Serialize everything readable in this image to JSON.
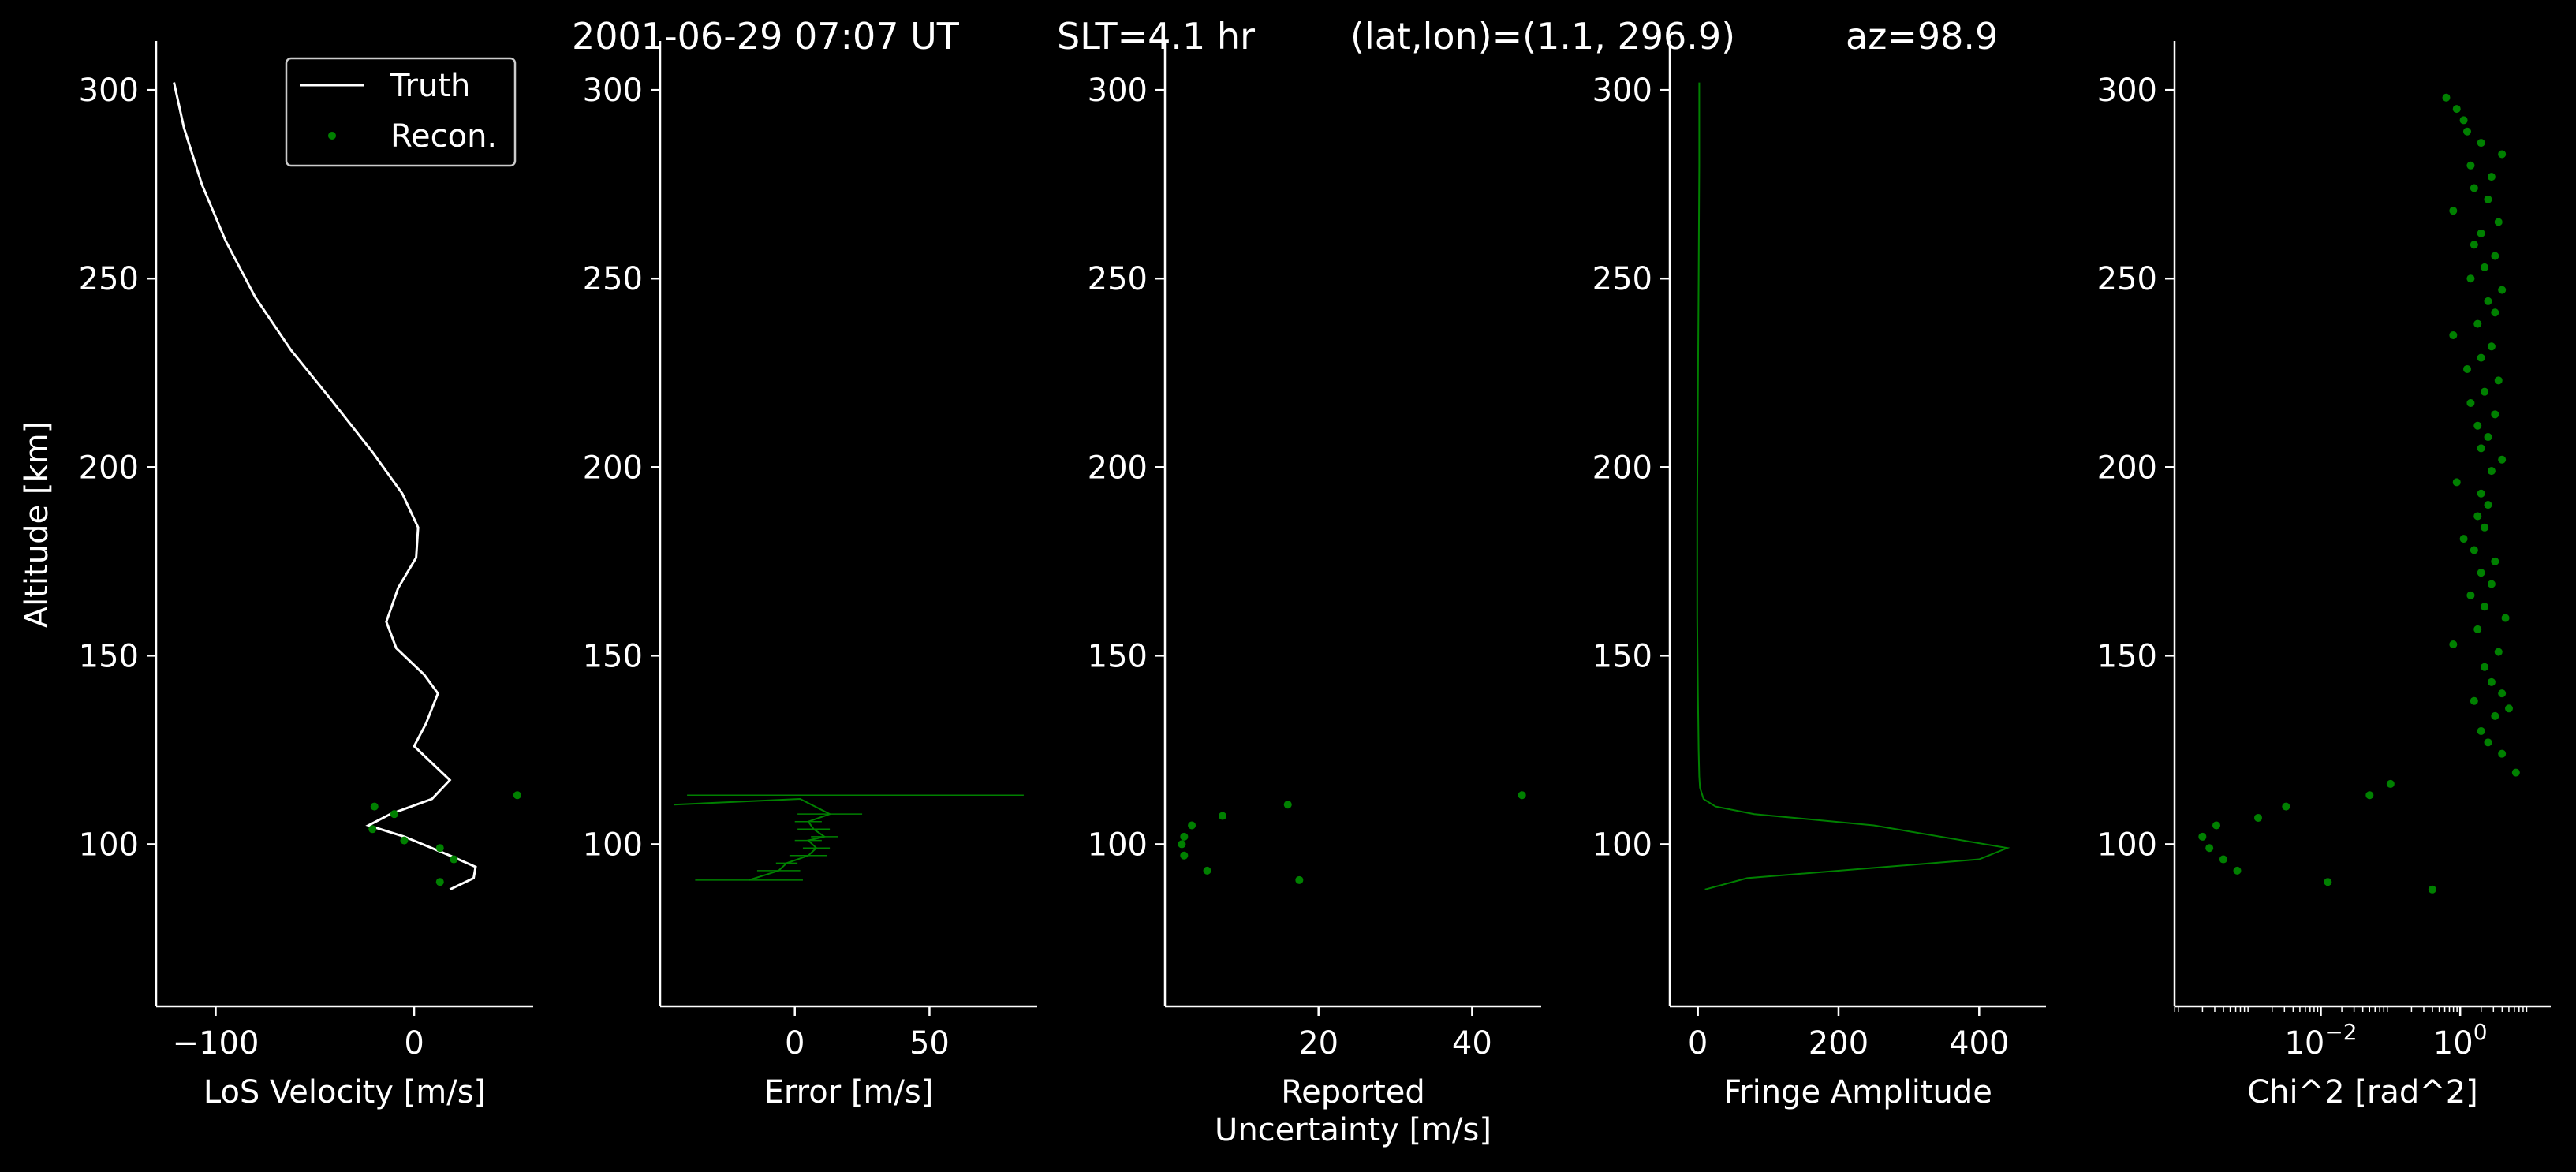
{
  "figure": {
    "title_parts": [
      "2001-06-29 07:07 UT",
      "SLT=4.1 hr",
      "(lat,lon)=(1.1, 296.9)",
      "az=98.9"
    ],
    "background": "#000000",
    "colors": {
      "truth": "#ffffff",
      "recon": "#008000",
      "axis": "#ffffff"
    }
  },
  "chart_data": [
    {
      "type": "line",
      "xlabel": "LoS Velocity [m/s]",
      "ylabel": "Altitude [km]",
      "xlim": [
        -130,
        60
      ],
      "ylim": [
        57,
        313
      ],
      "x_ticks": [
        -100,
        0
      ],
      "x_tick_labels": [
        "−100",
        "0"
      ],
      "y_ticks": [
        100,
        150,
        200,
        250,
        300
      ],
      "legend": {
        "position": "top-right",
        "entries": [
          "Truth",
          "Recon."
        ]
      },
      "series": [
        {
          "name": "Truth",
          "style": "line",
          "x": [
            -121,
            -116,
            -107,
            -95,
            -80,
            -62,
            -42,
            -21,
            -6,
            2,
            1,
            -8,
            -14,
            -9,
            5,
            12,
            6,
            0,
            10,
            18,
            9,
            -12,
            -23,
            -5,
            18,
            31,
            30,
            18
          ],
          "y": [
            302,
            290,
            275,
            260,
            245,
            231,
            218,
            204,
            193,
            184,
            176,
            168,
            159,
            152,
            145,
            140,
            132,
            126,
            121,
            117,
            112,
            108,
            105,
            102,
            97,
            94,
            91,
            88
          ]
        },
        {
          "name": "Recon.",
          "style": "points",
          "x": [
            52,
            -20,
            -10,
            -5,
            13,
            20,
            -21,
            13
          ],
          "y": [
            113,
            110,
            108,
            101,
            99,
            96,
            104,
            90
          ]
        }
      ]
    },
    {
      "type": "line",
      "xlabel": "Error [m/s]",
      "ylim": [
        57,
        313
      ],
      "xlim": [
        -50,
        90
      ],
      "x_ticks": [
        0,
        50
      ],
      "y_ticks": [
        100,
        150,
        200,
        250,
        300
      ],
      "series": [
        {
          "name": "",
          "style": "errorline",
          "x": [
            -45,
            2,
            13,
            5,
            7,
            11,
            5,
            8,
            5,
            -3,
            -6,
            -17
          ],
          "y": [
            110.5,
            112,
            108,
            106,
            104,
            102,
            101,
            99,
            97,
            95,
            93,
            90.5
          ],
          "xerr": [
            0,
            0,
            12,
            5,
            6,
            5,
            5,
            5,
            7,
            4,
            8,
            20
          ],
          "hairline": {
            "x": [
              -40,
              35,
              85
            ],
            "y": [
              113,
              113,
              113
            ]
          }
        }
      ]
    },
    {
      "type": "scatter",
      "xlabel": "Reported\nUncertainty [m/s]",
      "ylim": [
        57,
        313
      ],
      "xlim": [
        0,
        49
      ],
      "x_ticks": [
        20,
        40
      ],
      "y_ticks": [
        100,
        150,
        200,
        250,
        300
      ],
      "series": [
        {
          "name": "",
          "x": [
            46.5,
            16,
            7.5,
            3.5,
            2.5,
            2.2,
            2.5,
            5.5,
            17.5
          ],
          "y": [
            113,
            110.5,
            107.5,
            105,
            102,
            100,
            97,
            93,
            90.5
          ]
        }
      ]
    },
    {
      "type": "line",
      "xlabel": "Fringe Amplitude",
      "ylim": [
        57,
        313
      ],
      "xlim": [
        -40,
        495
      ],
      "x_ticks": [
        0,
        200,
        400
      ],
      "y_ticks": [
        100,
        150,
        200,
        250,
        300
      ],
      "series": [
        {
          "name": "",
          "x": [
            2,
            2,
            1,
            0,
            -1,
            -1,
            0,
            1,
            2,
            3,
            8,
            25,
            80,
            250,
            440,
            400,
            70,
            10
          ],
          "y": [
            302,
            280,
            250,
            220,
            190,
            160,
            140,
            125,
            118,
            115,
            112,
            110,
            108,
            105,
            99,
            96,
            91,
            88
          ]
        }
      ]
    },
    {
      "type": "scatter",
      "xlabel": "Chi^2 [rad^2]",
      "ylim": [
        57,
        313
      ],
      "xlim_log10": [
        -4.1,
        1.3
      ],
      "x_ticks_log10": [
        -2,
        0
      ],
      "x_tick_labels": [
        "10",
        "10"
      ],
      "x_tick_exponents": [
        "−2",
        "0"
      ],
      "y_ticks": [
        100,
        150,
        200,
        250,
        300
      ],
      "series": [
        {
          "name": "",
          "x_log10": [
            -3.7,
            -3.6,
            -3.5,
            -3.4,
            -3.2,
            -2.9,
            -2.5,
            -1.9,
            -1.3,
            -1.0,
            -0.4,
            0.8,
            0.6,
            0.4,
            0.3,
            0.5,
            0.7,
            0.6,
            0.2,
            0.45,
            0.35,
            0.55,
            -0.1,
            0.25,
            0.65,
            0.35,
            0.15,
            0.45,
            0.3,
            0.5,
            0.2,
            0.05,
            0.35,
            0.25,
            0.4,
            0.3,
            -0.05,
            0.45,
            0.6,
            0.3,
            0.4,
            0.25,
            0.5,
            0.15,
            0.35,
            0.55,
            0.1,
            0.3,
            0.45,
            -0.1,
            0.25,
            0.5,
            0.4,
            0.6,
            0.15,
            0.35,
            0.5,
            0.2,
            0.3,
            0.55,
            -0.1,
            0.4,
            0.2,
            0.45,
            0.15,
            0.6,
            0.3,
            0.1,
            0.05,
            -0.05,
            -0.2
          ],
          "y": [
            102,
            99,
            105,
            96,
            93,
            107,
            110,
            90,
            113,
            116,
            88,
            119,
            124,
            127,
            130,
            134,
            136,
            140,
            138,
            143,
            147,
            151,
            153,
            157,
            160,
            163,
            166,
            169,
            172,
            175,
            178,
            181,
            184,
            187,
            190,
            193,
            196,
            199,
            202,
            205,
            208,
            211,
            214,
            217,
            220,
            223,
            226,
            229,
            232,
            235,
            238,
            241,
            244,
            247,
            250,
            253,
            256,
            259,
            262,
            265,
            268,
            271,
            274,
            277,
            280,
            283,
            286,
            289,
            292,
            295,
            298
          ]
        }
      ]
    }
  ]
}
